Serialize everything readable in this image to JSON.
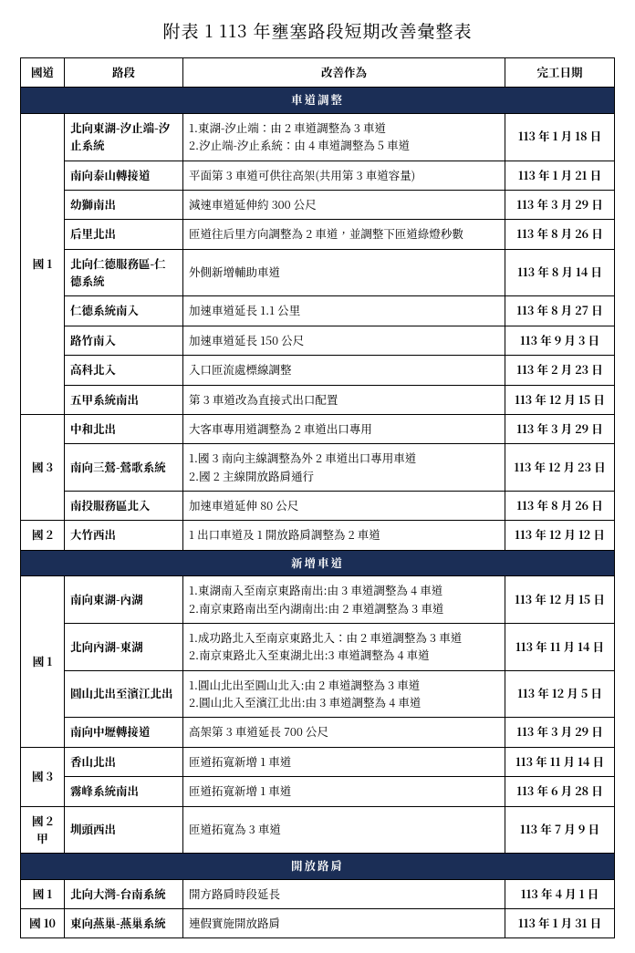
{
  "title": "附表 1 113 年壅塞路段短期改善彙整表",
  "colors": {
    "header_bg": "#1b2e56",
    "header_fg": "#ffffff",
    "border": "#000000"
  },
  "columns": [
    "國道",
    "路段",
    "改善作為",
    "完工日期"
  ],
  "sections": [
    {
      "category": "車道調整",
      "groups": [
        {
          "route": "國 1",
          "rows": [
            {
              "segment": "北向東湖-汐止端-汐止系統",
              "action": "1.東湖-汐止端：由 2 車道調整為 3 車道\n2.汐止端-汐止系統：由 4 車道調整為 5 車道",
              "date": "113 年 1 月 18 日"
            },
            {
              "segment": "南向泰山轉接道",
              "action": "平面第 3 車道可供往高架(共用第 3 車道容量)",
              "date": "113 年 1 月 21 日"
            },
            {
              "segment": "幼獅南出",
              "action": "減速車道延伸約 300 公尺",
              "date": "113 年 3 月 29 日"
            },
            {
              "segment": "后里北出",
              "action": "匝道往后里方向調整為 2 車道，並調整下匝道綠燈秒數",
              "date": "113 年 8 月 26 日"
            },
            {
              "segment": "北向仁德服務區-仁德系統",
              "action": "外側新增輔助車道",
              "date": "113 年 8 月 14 日"
            },
            {
              "segment": "仁德系統南入",
              "action": "加速車道延長 1.1 公里",
              "date": "113 年 8 月 27 日"
            },
            {
              "segment": "路竹南入",
              "action": "加速車道延長 150 公尺",
              "date": "113 年 9 月 3 日"
            },
            {
              "segment": "高科北入",
              "action": "入口匝流處標線調整",
              "date": "113 年 2 月 23 日"
            },
            {
              "segment": "五甲系統南出",
              "action": "第 3 車道改為直接式出口配置",
              "date": "113 年 12 月 15 日"
            }
          ]
        },
        {
          "route": "國 3",
          "rows": [
            {
              "segment": "中和北出",
              "action": "大客車專用道調整為 2 車道出口專用",
              "date": "113 年 3 月 29 日"
            },
            {
              "segment": "南向三鶯-鶯歌系統",
              "action": "1.國 3 南向主線調整為外 2 車道出口專用車道\n2.國 2 主線開放路肩通行",
              "date": "113 年 12 月 23 日"
            },
            {
              "segment": "南投服務區北入",
              "action": "加速車道延伸 80 公尺",
              "date": "113 年 8 月 26 日"
            }
          ]
        },
        {
          "route": "國 2",
          "rows": [
            {
              "segment": "大竹西出",
              "action": "1 出口車道及 1 開放路肩調整為 2 車道",
              "date": "113 年 12 月 12 日"
            }
          ]
        }
      ]
    },
    {
      "category": "新增車道",
      "groups": [
        {
          "route": "國 1",
          "rows": [
            {
              "segment": "南向東湖-內湖",
              "action": "1.東湖南入至南京東路南出:由 3 車道調整為 4 車道\n2.南京東路南出至內湖南出:由 2 車道調整為 3 車道",
              "date": "113 年 12 月 15 日"
            },
            {
              "segment": "北向內湖-東湖",
              "action": "1.成功路北入至南京東路北入：由 2 車道調整為 3 車道\n2.南京東路北入至東湖北出:3 車道調整為 4 車道",
              "date": "113 年 11 月 14 日"
            },
            {
              "segment": "圓山北出至濱江北出",
              "action": "1.圓山北出至圓山北入:由 2 車道調整為 3 車道\n2.圓山北入至濱江北出:由 3 車道調整為 4 車道",
              "date": "113 年 12 月 5 日"
            },
            {
              "segment": "南向中壢轉接道",
              "action": "高架第 3 車道延長 700 公尺",
              "date": "113 年 3 月 29 日"
            }
          ]
        },
        {
          "route": "國 3",
          "rows": [
            {
              "segment": "香山北出",
              "action": "匝道拓寬新增 1 車道",
              "date": "113 年 11 月 14 日"
            },
            {
              "segment": "霧峰系統南出",
              "action": "匝道拓寬新增 1 車道",
              "date": "113 年 6 月 28 日"
            }
          ]
        },
        {
          "route": "國 2 甲",
          "rows": [
            {
              "segment": "圳頭西出",
              "action": "匝道拓寬為 3 車道",
              "date": "113 年 7 月 9 日"
            }
          ]
        }
      ]
    },
    {
      "category": "開放路肩",
      "groups": [
        {
          "route": "國 1",
          "rows": [
            {
              "segment": "北向大灣-台南系統",
              "action": "開方路肩時段延長",
              "date": "113 年 4 月 1 日"
            }
          ]
        },
        {
          "route": "國 10",
          "rows": [
            {
              "segment": "東向燕巢-燕巢系統",
              "action": "連假實施開放路肩",
              "date": "113 年 1 月 31 日"
            }
          ]
        }
      ]
    }
  ]
}
